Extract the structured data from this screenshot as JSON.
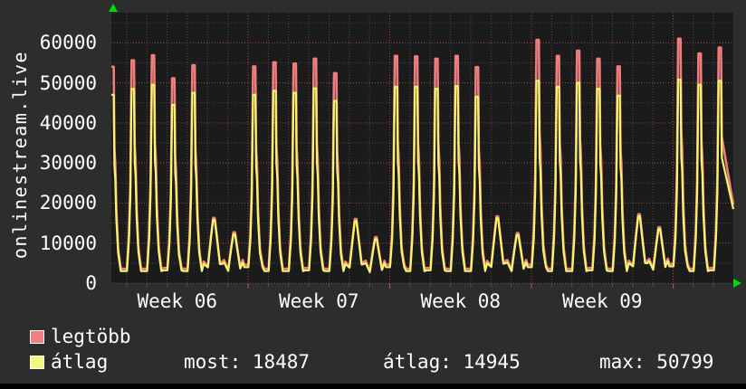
{
  "left_title": "onlinestream.live",
  "legend": {
    "items": [
      {
        "label": "legtöbb",
        "color": "#f08080"
      },
      {
        "label": "átlag",
        "color": "#f5f582"
      }
    ]
  },
  "stats": {
    "items": [
      {
        "label": "most",
        "value": "18487",
        "text": "most: 18487"
      },
      {
        "label": "átlag",
        "value": "14945",
        "text": "átlag: 14945"
      },
      {
        "label": "max",
        "value": "50799",
        "text": "max: 50799"
      }
    ]
  },
  "colors": {
    "background": "#2d2d2d",
    "plot_background": "#1b1b1b",
    "series_max": "#f07d7d",
    "series_avg": "#f5f56e",
    "grid_minor": "#4b4b4b",
    "grid_major": "#a04545",
    "tick_day": "#7a4040",
    "tick_week": "#c05050",
    "baseline": "#5a5a5a",
    "arrow": "#00d800",
    "text": "#ffffff"
  },
  "chart_data": {
    "type": "line",
    "title": "onlinestream.live",
    "ylabel": "onlinestream.live",
    "xlabel": "",
    "ylim": [
      0,
      67500
    ],
    "y_ticks": [
      0,
      10000,
      20000,
      30000,
      40000,
      50000,
      60000
    ],
    "y_minor_step": 5000,
    "x_tick_labels": [
      "Week 06",
      "Week 07",
      "Week 08",
      "Week 09"
    ],
    "days_per_week": 7,
    "n_days": 31,
    "grid": true,
    "legend_position": "bottom-left",
    "series": [
      {
        "name": "legtöbb",
        "color": "#f07d7d",
        "role": "daily maximum viewers"
      },
      {
        "name": "átlag",
        "color": "#f5f56e",
        "role": "daily average viewers"
      }
    ],
    "days_comment": "per day [peak_legtobb, peak_atlag, left_valley], Monday-first starting at Week 06",
    "days": [
      [
        54000,
        47000,
        3000
      ],
      [
        55600,
        48500,
        3000
      ],
      [
        56900,
        49500,
        3000
      ],
      [
        51100,
        44500,
        3200
      ],
      [
        54400,
        47500,
        3000
      ],
      [
        16300,
        15800,
        4800
      ],
      [
        12700,
        12200,
        5200
      ],
      [
        54100,
        47000,
        4000
      ],
      [
        55100,
        48000,
        3000
      ],
      [
        54800,
        47500,
        3000
      ],
      [
        56000,
        48600,
        3200
      ],
      [
        52400,
        45500,
        3000
      ],
      [
        16000,
        15500,
        4800
      ],
      [
        11500,
        11000,
        5000
      ],
      [
        56700,
        49000,
        4000
      ],
      [
        56600,
        49000,
        3000
      ],
      [
        56000,
        48500,
        3200
      ],
      [
        56700,
        49200,
        3000
      ],
      [
        53900,
        46500,
        3000
      ],
      [
        16700,
        16200,
        5000
      ],
      [
        12500,
        12000,
        5200
      ],
      [
        60700,
        50500,
        4000
      ],
      [
        56700,
        49000,
        3000
      ],
      [
        58000,
        50000,
        3000
      ],
      [
        56000,
        48500,
        3200
      ],
      [
        54100,
        46800,
        3000
      ],
      [
        17200,
        16700,
        5000
      ],
      [
        14000,
        13500,
        5500
      ],
      [
        61000,
        50799,
        4200
      ],
      [
        57300,
        49500,
        3000
      ],
      [
        58800,
        50500,
        3200
      ]
    ],
    "end_values": {
      "legtobb": 19600,
      "atlag": 18487
    },
    "stats": {
      "most": 18487,
      "atlag": 14945,
      "max": 50799
    }
  }
}
